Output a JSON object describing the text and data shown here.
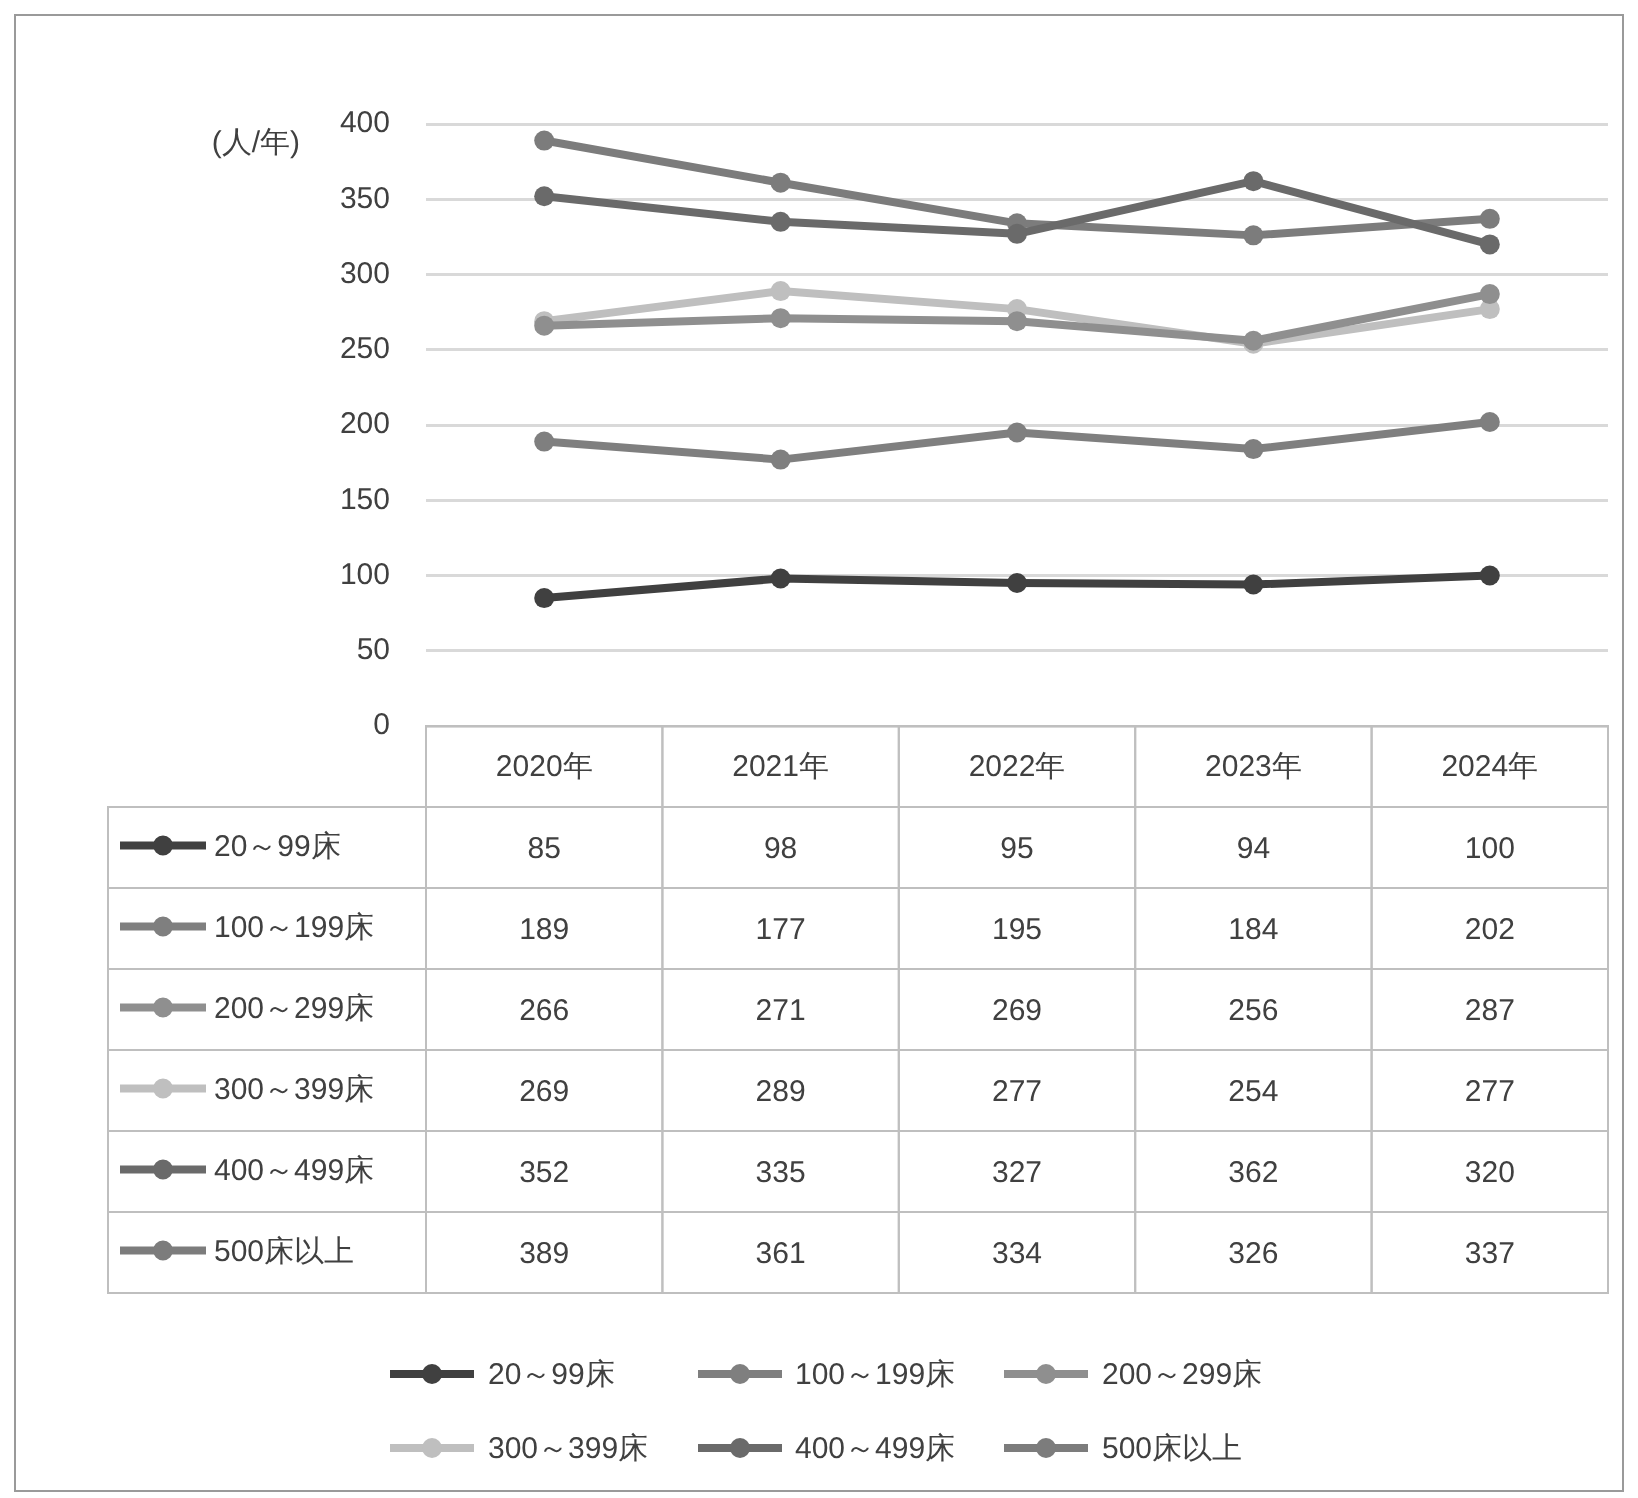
{
  "chart_data": {
    "type": "line",
    "ylabel": "(人/年)",
    "categories": [
      "2020年",
      "2021年",
      "2022年",
      "2023年",
      "2024年"
    ],
    "series": [
      {
        "name": "20～99床",
        "color": "#404040",
        "values": [
          85,
          98,
          95,
          94,
          100
        ]
      },
      {
        "name": "100～199床",
        "color": "#7f7f7f",
        "values": [
          189,
          177,
          195,
          184,
          202
        ]
      },
      {
        "name": "200～299床",
        "color": "#8f8f8f",
        "values": [
          266,
          271,
          269,
          256,
          287
        ]
      },
      {
        "name": "300～399床",
        "color": "#bfbfbf",
        "values": [
          269,
          289,
          277,
          254,
          277
        ]
      },
      {
        "name": "400～499床",
        "color": "#6a6a6a",
        "values": [
          352,
          335,
          327,
          362,
          320
        ]
      },
      {
        "name": "500床以上",
        "color": "#7c7c7c",
        "values": [
          389,
          361,
          334,
          326,
          337
        ]
      }
    ],
    "ylim": [
      0,
      400
    ],
    "yticks": [
      0,
      50,
      100,
      150,
      200,
      250,
      300,
      350,
      400
    ],
    "grid": "y",
    "legend": "bottom",
    "marker": "circle",
    "line_style": "solid",
    "data_labels": true
  }
}
